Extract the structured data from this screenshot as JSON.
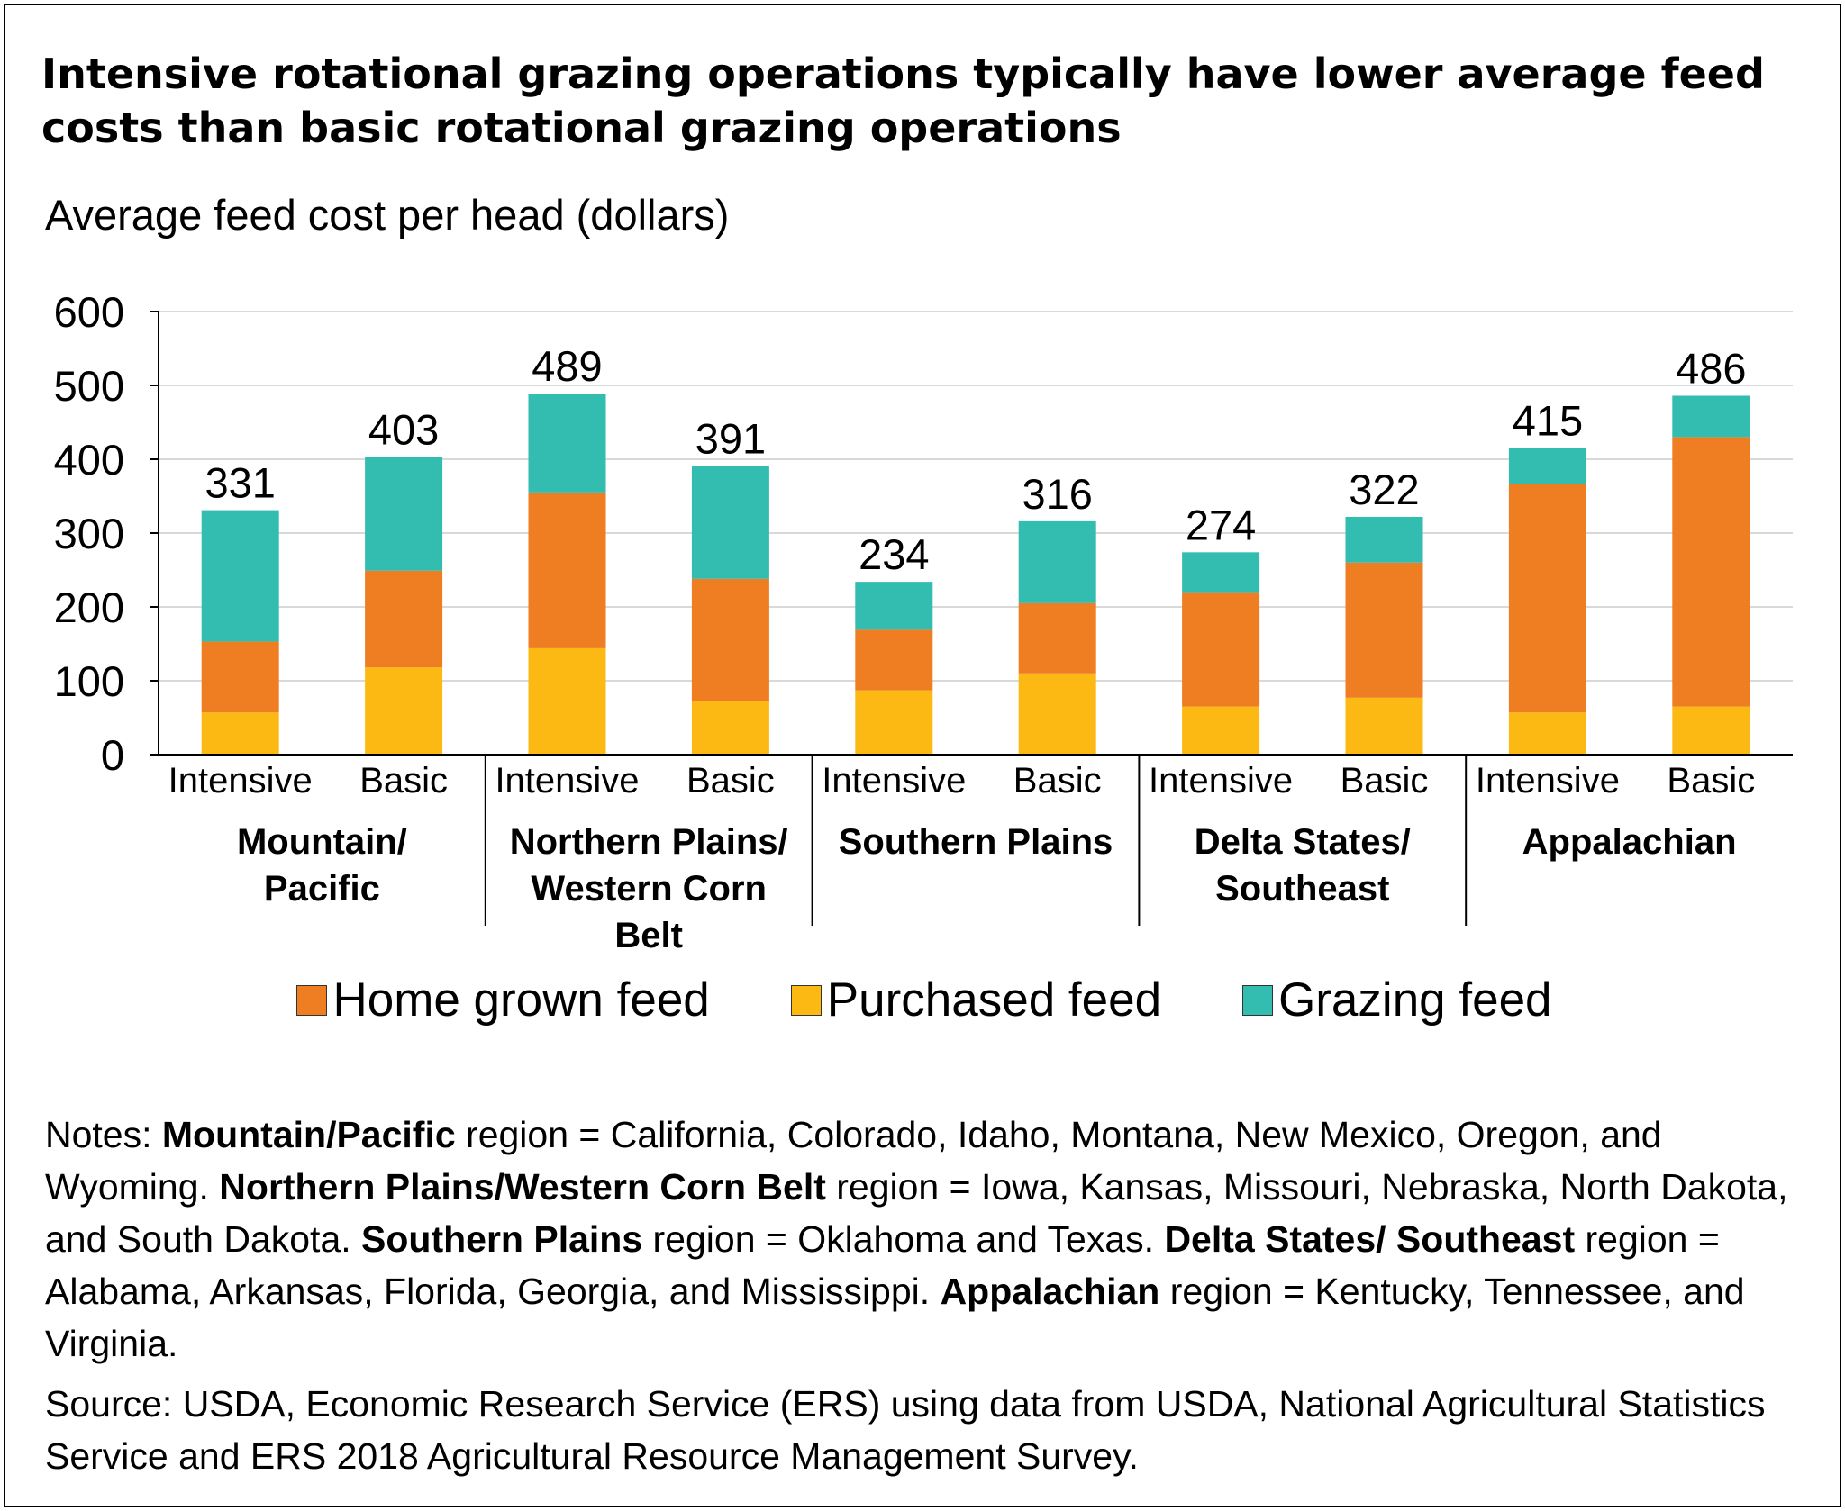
{
  "title": "Intensive rotational grazing operations typically have lower average feed costs than basic rotational grazing operations",
  "colors": {
    "home_grown": "#EF7E23",
    "purchased": "#FDB913",
    "grazing": "#32BDB0",
    "gridline": "#d9d9d9",
    "axis": "#000000"
  },
  "chart_data": {
    "type": "bar",
    "stacked": true,
    "ylabel": "Average feed cost per head (dollars)",
    "ylim": [
      0,
      600
    ],
    "yticks": [
      0,
      100,
      200,
      300,
      400,
      500,
      600
    ],
    "grid": true,
    "legend_placement": "bottom",
    "groups": [
      {
        "name_lines": [
          "Mountain/",
          "Pacific"
        ]
      },
      {
        "name_lines": [
          "Northern Plains/",
          "Western Corn",
          "Belt"
        ]
      },
      {
        "name_lines": [
          "Southern Plains"
        ]
      },
      {
        "name_lines": [
          "Delta States/",
          "Southeast"
        ]
      },
      {
        "name_lines": [
          "Appalachian"
        ]
      }
    ],
    "categories": [
      "Intensive",
      "Basic",
      "Intensive",
      "Basic",
      "Intensive",
      "Basic",
      "Intensive",
      "Basic",
      "Intensive",
      "Basic"
    ],
    "series": [
      {
        "name": "Purchased feed",
        "color_key": "purchased",
        "values": [
          57,
          118,
          144,
          72,
          87,
          110,
          65,
          77,
          57,
          65
        ]
      },
      {
        "name": "Home grown feed",
        "color_key": "home_grown",
        "values": [
          96,
          131,
          211,
          166,
          82,
          95,
          155,
          183,
          310,
          365
        ]
      },
      {
        "name": "Grazing feed",
        "color_key": "grazing",
        "values": [
          178,
          154,
          134,
          153,
          65,
          111,
          54,
          62,
          48,
          56
        ]
      }
    ],
    "totals": [
      331,
      403,
      489,
      391,
      234,
      316,
      274,
      322,
      415,
      486
    ],
    "legend_order": [
      "Home grown feed",
      "Purchased feed",
      "Grazing feed"
    ]
  },
  "legend": {
    "home_grown": "Home grown feed",
    "purchased": "Purchased feed",
    "grazing": "Grazing feed"
  },
  "notes": [
    {
      "text": "Notes: ",
      "bold": false
    },
    {
      "text": "Mountain/Pacific",
      "bold": true
    },
    {
      "text": " region = California, Colorado, Idaho, Montana, New Mexico, Oregon, and Wyoming. ",
      "bold": false
    },
    {
      "text": "Northern Plains/Western Corn Belt",
      "bold": true
    },
    {
      "text": " region = Iowa, Kansas, Missouri, Nebraska, North Dakota, and South Dakota. ",
      "bold": false
    },
    {
      "text": "Southern Plains",
      "bold": true
    },
    {
      "text": " region = Oklahoma and Texas. ",
      "bold": false
    },
    {
      "text": "Delta States/ Southeast",
      "bold": true
    },
    {
      "text": " region = Alabama, Arkansas, Florida, Georgia, and Mississippi. ",
      "bold": false
    },
    {
      "text": "Appalachian",
      "bold": true
    },
    {
      "text": " region = Kentucky, Tennessee, and Virginia.",
      "bold": false
    }
  ],
  "source": "Source: USDA, Economic Research Service (ERS) using data from USDA, National Agricultural Statistics Service and ERS 2018 Agricultural Resource Management Survey."
}
